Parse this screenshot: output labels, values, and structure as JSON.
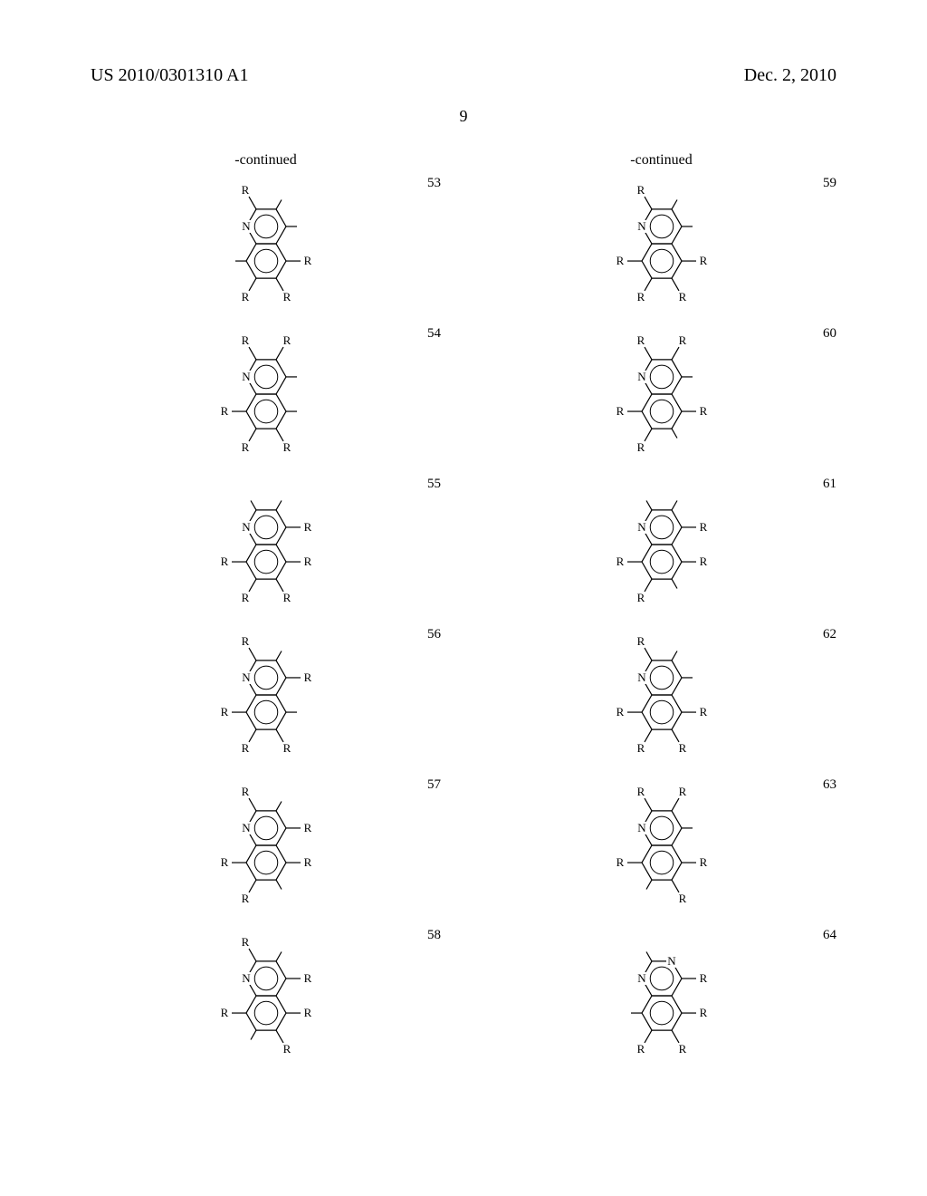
{
  "header": {
    "publication_number": "US 2010/0301310 A1",
    "date": "Dec. 2, 2010"
  },
  "page_number": "9",
  "continued_label": "-continued",
  "molecule_style": {
    "ring_stroke": "#000000",
    "ring_stroke_width": 1.2,
    "bond_stroke": "#000000",
    "bond_stroke_width": 1.2,
    "label_font_size": 13,
    "label_font_family": "Times New Roman, serif",
    "inner_circle_stroke_width": 1
  },
  "left_column": [
    {
      "number": "53",
      "r_positions": [
        1,
        2,
        5,
        6,
        7
      ],
      "methyl_positions": [
        3,
        4,
        8
      ],
      "hetero": {
        "1": "N"
      }
    },
    {
      "number": "54",
      "r_positions": [
        1,
        2,
        3,
        6,
        7,
        8
      ],
      "methyl_positions": [
        4,
        5
      ],
      "hetero": {
        "1": "N"
      }
    },
    {
      "number": "55",
      "r_positions": [
        4,
        5,
        6,
        7,
        8
      ],
      "methyl_positions": [
        2,
        3
      ],
      "hetero": {
        "1": "N"
      }
    },
    {
      "number": "56",
      "r_positions": [
        2,
        4,
        6,
        7,
        8
      ],
      "methyl_positions": [
        3,
        5
      ],
      "hetero": {
        "1": "N"
      }
    },
    {
      "number": "57",
      "r_positions": [
        2,
        4,
        5,
        7,
        8
      ],
      "methyl_positions": [
        3,
        6
      ],
      "hetero": {
        "1": "N"
      }
    },
    {
      "number": "58",
      "r_positions": [
        2,
        4,
        5,
        6,
        8
      ],
      "methyl_positions": [
        3,
        7
      ],
      "hetero": {
        "1": "N"
      }
    }
  ],
  "right_column": [
    {
      "number": "59",
      "r_positions": [
        2,
        5,
        6,
        7,
        8
      ],
      "methyl_positions": [
        3,
        4
      ],
      "hetero": {
        "1": "N"
      }
    },
    {
      "number": "60",
      "r_positions": [
        2,
        3,
        5,
        7,
        8
      ],
      "methyl_positions": [
        4,
        6
      ],
      "hetero": {
        "1": "N"
      }
    },
    {
      "number": "61",
      "r_positions": [
        4,
        5,
        7,
        8
      ],
      "methyl_positions": [
        2,
        3,
        6
      ],
      "hetero": {
        "1": "N"
      }
    },
    {
      "number": "62",
      "r_positions": [
        2,
        5,
        6,
        7,
        8
      ],
      "methyl_positions": [
        3,
        4
      ],
      "hetero": {
        "1": "N"
      }
    },
    {
      "number": "63",
      "r_positions": [
        2,
        3,
        5,
        6,
        8
      ],
      "methyl_positions": [
        4,
        7
      ],
      "hetero": {
        "1": "N"
      }
    },
    {
      "number": "64",
      "r_positions": [
        4,
        5,
        6,
        7
      ],
      "methyl_positions": [
        2,
        8
      ],
      "hetero": {
        "1": "N",
        "3": "N"
      }
    }
  ]
}
